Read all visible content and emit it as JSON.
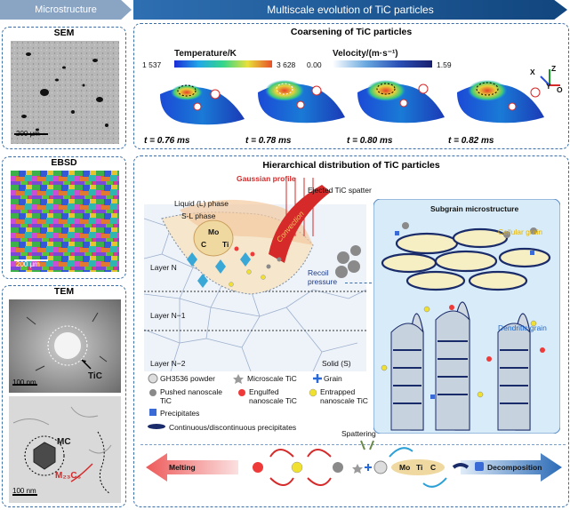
{
  "header": {
    "left": "Microstructure",
    "right": "Multiscale evolution of TiC particles"
  },
  "left": {
    "sem": {
      "title": "SEM",
      "scale": "200 μm"
    },
    "ebsd": {
      "title": "EBSD",
      "scale": "200 μm"
    },
    "tem": {
      "title": "TEM",
      "scale1": "100 nm",
      "tic_label": "TiC",
      "scale2": "100 nm",
      "mc_label": "MC",
      "m23_label": "M₂₃C₆"
    }
  },
  "coarsening": {
    "title": "Coarsening of TiC particles",
    "temp_label": "Temperature/K",
    "temp_min": "1 537",
    "temp_max": "3 628",
    "vel_label": "Velocity/(m·s⁻¹)",
    "vel_min": "0.00",
    "vel_max": "1.59",
    "axes": {
      "x": "X",
      "y": "Y",
      "z": "Z",
      "o": "O"
    },
    "times": [
      "t = 0.76 ms",
      "t = 0.78 ms",
      "t = 0.80 ms",
      "t = 0.82 ms"
    ]
  },
  "hier": {
    "title": "Hierarchical distribution of TiC particles",
    "gaussian": "Gaussian profile",
    "ejected": "Ejected TiC spatter",
    "liquid": "Liquid (L) phase",
    "sl": "S-L phase",
    "mo": "Mo",
    "c": "C",
    "ti": "Ti",
    "convection": "Convection",
    "recoil": "Recoil pressure",
    "layer_n": "Layer N",
    "layer_n1": "Layer N−1",
    "layer_n2": "Layer N−2",
    "solid": "Solid (S)",
    "subgrain": "Subgrain microstructure",
    "cellular": "Cellular grain",
    "dendritic": "Dendritic grain"
  },
  "legend": {
    "powder": "GH3536 powder",
    "microscale": "Microscale TiC",
    "grain": "Grain",
    "pushed": "Pushed nanoscale TiC",
    "engulfed": "Engulfed nanoscale TiC",
    "entrapped": "Entrapped nanoscale TiC",
    "precipitates": "Precipitates",
    "continuous": "Continuous/discontinuous precipitates"
  },
  "process": {
    "melting": "Melting",
    "spattering": "Spattering",
    "mo": "Mo",
    "ti": "Ti",
    "c": "C",
    "decomposition": "Decomposition"
  }
}
